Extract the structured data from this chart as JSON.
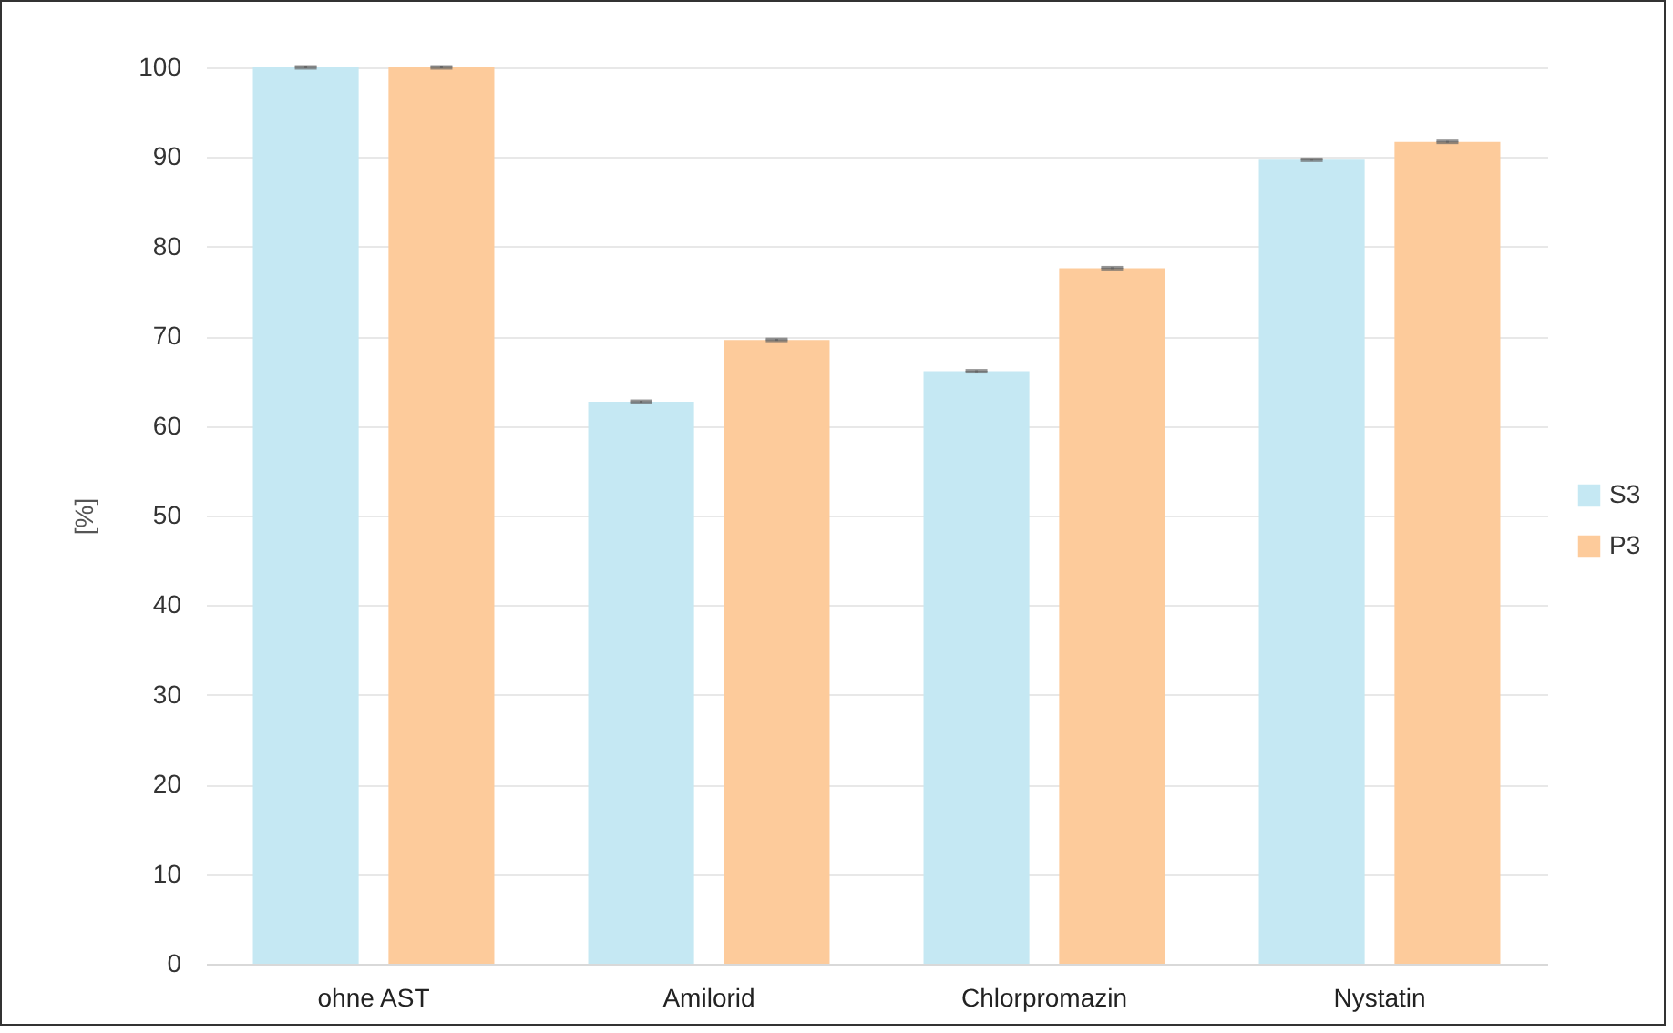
{
  "chart_data": {
    "type": "bar",
    "ylabel": "[%]",
    "categories": [
      "ohne AST",
      "Amilorid",
      "Chlorpromazin",
      "Nystatin"
    ],
    "series": [
      {
        "name": "S3",
        "color": "#c5e8f3",
        "values": [
          100,
          62.7,
          66.1,
          89.7
        ],
        "errors": [
          0.1,
          0.1,
          0.1,
          0.1
        ]
      },
      {
        "name": "P3",
        "color": "#fdcb9b",
        "values": [
          100,
          69.6,
          77.6,
          91.7
        ],
        "errors": [
          0.1,
          0.1,
          0.1,
          0.1
        ]
      }
    ],
    "ylim": [
      0,
      100
    ],
    "yticks": [
      0,
      10,
      20,
      30,
      40,
      50,
      60,
      70,
      80,
      90,
      100
    ],
    "grid": "y",
    "legend": "right"
  }
}
